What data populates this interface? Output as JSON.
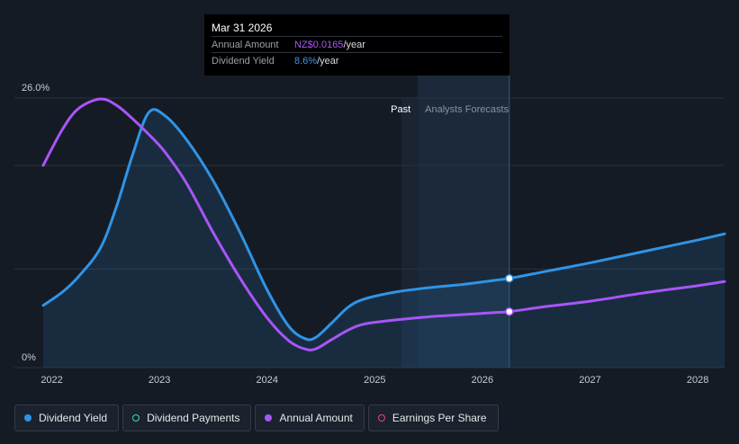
{
  "tooltip": {
    "date": "Mar 31 2026",
    "annual_amount_label": "Annual Amount",
    "annual_amount_value": "NZ$0.0165",
    "annual_amount_unit": "/year",
    "dividend_yield_label": "Dividend Yield",
    "dividend_yield_value": "8.6%",
    "dividend_yield_unit": "/year"
  },
  "legend": [
    {
      "label": "Dividend Yield",
      "color": "#2f94e6",
      "style": "filled"
    },
    {
      "label": "Dividend Payments",
      "color": "#3dd5c4",
      "style": "hollow"
    },
    {
      "label": "Annual Amount",
      "color": "#a855f7",
      "style": "filled"
    },
    {
      "label": "Earnings Per Share",
      "color": "#e2487d",
      "style": "hollow"
    }
  ],
  "chart_data": {
    "type": "line",
    "ylim": [
      0,
      26
    ],
    "y_tick_labels": [
      "26.0%",
      "0%"
    ],
    "x_tick_labels": [
      "2022",
      "2023",
      "2024",
      "2025",
      "2026",
      "2027",
      "2028"
    ],
    "xlim": [
      2021.92,
      2028.25
    ],
    "past_label": "Past",
    "forecast_label": "Analysts Forecasts",
    "forecast_start": 2025.4,
    "selected_x": 2026.25,
    "grid": true,
    "series": [
      {
        "name": "Dividend Yield",
        "color": "#2f94e6",
        "area": true,
        "x": [
          2021.92,
          2022.1,
          2022.25,
          2022.45,
          2022.6,
          2022.75,
          2022.9,
          2023.05,
          2023.25,
          2023.5,
          2023.75,
          2024.0,
          2024.2,
          2024.35,
          2024.45,
          2024.6,
          2024.75,
          2024.9,
          2025.2,
          2025.5,
          2025.8,
          2026.1,
          2026.25,
          2026.6,
          2027.0,
          2027.5,
          2028.0,
          2028.25
        ],
        "y": [
          6.0,
          7.3,
          8.8,
          11.5,
          15.5,
          20.5,
          24.6,
          24.3,
          22.0,
          18.0,
          13.0,
          7.5,
          4.0,
          2.8,
          2.9,
          4.3,
          5.8,
          6.6,
          7.3,
          7.7,
          8.0,
          8.4,
          8.6,
          9.3,
          10.1,
          11.2,
          12.3,
          12.9
        ]
      },
      {
        "name": "Annual Amount",
        "color": "#a855f7",
        "area": false,
        "x": [
          2021.92,
          2022.1,
          2022.25,
          2022.45,
          2022.6,
          2022.75,
          2022.9,
          2023.05,
          2023.25,
          2023.5,
          2023.75,
          2024.0,
          2024.2,
          2024.35,
          2024.45,
          2024.6,
          2024.75,
          2024.9,
          2025.2,
          2025.5,
          2025.8,
          2026.1,
          2026.25,
          2026.6,
          2027.0,
          2027.5,
          2028.0,
          2028.25
        ],
        "y": [
          19.5,
          23.0,
          25.0,
          25.9,
          25.3,
          24.0,
          22.5,
          20.8,
          17.8,
          13.0,
          8.6,
          4.8,
          2.6,
          1.8,
          1.8,
          2.7,
          3.6,
          4.2,
          4.6,
          4.9,
          5.1,
          5.3,
          5.4,
          5.9,
          6.4,
          7.2,
          7.9,
          8.3
        ]
      }
    ]
  }
}
